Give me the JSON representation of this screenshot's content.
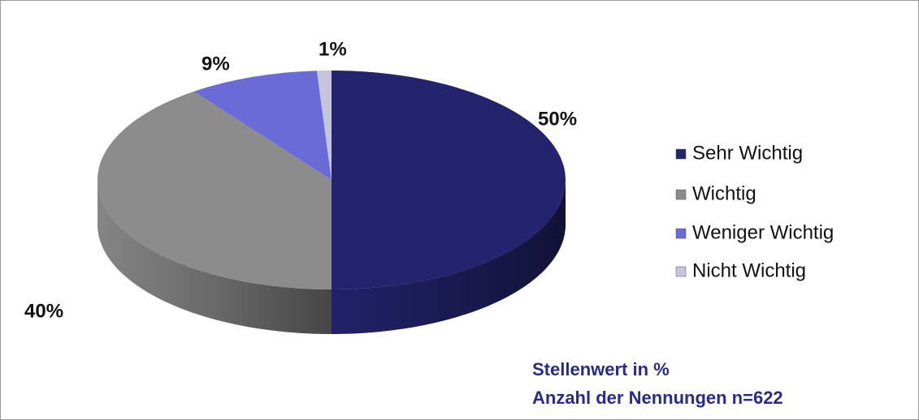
{
  "chart_data": {
    "type": "pie",
    "categories": [
      "Sehr Wichtig",
      "Wichtig",
      "Weniger Wichtig",
      "Nicht Wichtig"
    ],
    "values": [
      50,
      40,
      9,
      1
    ],
    "value_labels": [
      "50%",
      "40%",
      "9%",
      "1%"
    ],
    "colors": [
      "#23236e",
      "#8c8c8c",
      "#6b6bd8",
      "#c4c4dc"
    ],
    "legend": "right",
    "annotations": [
      "Stellenwert in %",
      "Anzahl der Nennungen n=622"
    ]
  }
}
